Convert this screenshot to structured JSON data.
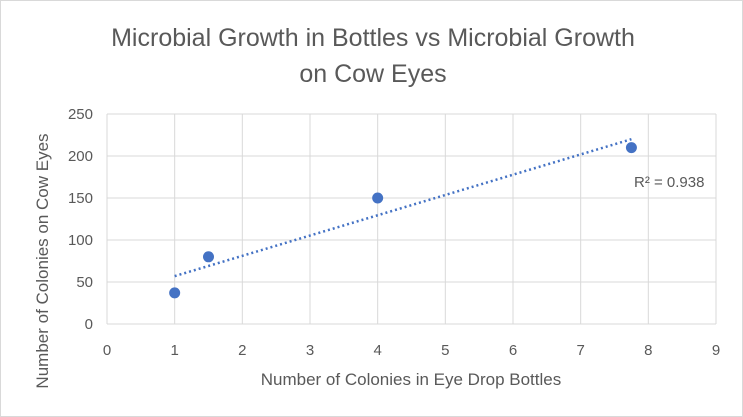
{
  "chart_data": {
    "type": "scatter",
    "title": "Microbial Growth in Bottles vs Microbial Growth on Cow Eyes",
    "title_lines": [
      "Microbial Growth in Bottles vs Microbial Growth",
      "on Cow Eyes"
    ],
    "xlabel": "Number of Colonies in Eye Drop Bottles",
    "ylabel": "Number of Colonies on Cow Eyes",
    "xlim": [
      0,
      9
    ],
    "ylim": [
      0,
      250
    ],
    "x_ticks": [
      0,
      1,
      2,
      3,
      4,
      5,
      6,
      7,
      8,
      9
    ],
    "y_ticks": [
      0,
      50,
      100,
      150,
      200,
      250
    ],
    "grid": true,
    "legend": "none",
    "series": [
      {
        "x": [
          1,
          1.5,
          4,
          7.75
        ],
        "y": [
          37,
          80,
          150,
          210
        ],
        "color": "#4472c4"
      }
    ],
    "trendline": {
      "type": "linear",
      "x_range": [
        1,
        7.75
      ],
      "y_at_start": 57,
      "y_at_end": 220,
      "color": "#4472c4",
      "style": "dotted",
      "r_squared_label": "R² = 0.938"
    }
  }
}
